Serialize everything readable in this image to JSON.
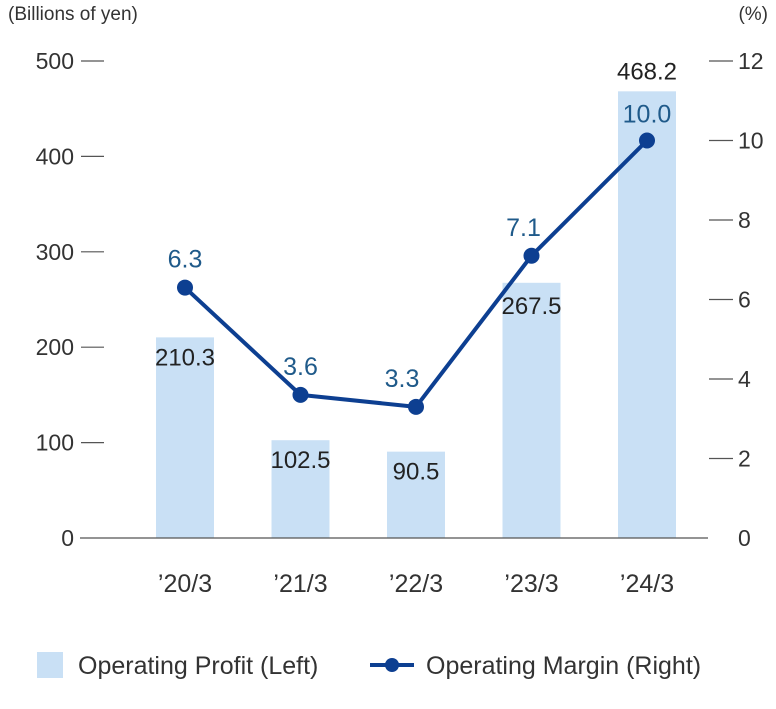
{
  "chart_data": {
    "type": "bar",
    "categories": [
      "’20/3",
      "’21/3",
      "’22/3",
      "’23/3",
      "’24/3"
    ],
    "series": [
      {
        "name": "Operating Profit (Left)",
        "type": "bar",
        "axis": "left",
        "values": [
          210.3,
          102.5,
          90.5,
          267.5,
          468.2
        ],
        "labels": [
          "210.3",
          "102.5",
          "90.5",
          "267.5",
          "468.2"
        ],
        "color": "#c9e0f5"
      },
      {
        "name": "Operating Margin (Right)",
        "type": "line",
        "axis": "right",
        "values": [
          6.3,
          3.6,
          3.3,
          7.1,
          10.0
        ],
        "labels": [
          "6.3",
          "3.6",
          "3.3",
          "7.1",
          "10.0"
        ],
        "color": "#0d3f91"
      }
    ],
    "left_axis": {
      "unit": "(Billions of yen)",
      "ylim": [
        0,
        500
      ],
      "ticks": [
        "0",
        "100",
        "200",
        "300",
        "400",
        "500"
      ]
    },
    "right_axis": {
      "unit": "(%)",
      "ylim": [
        0,
        12
      ],
      "ticks": [
        "0",
        "2",
        "4",
        "6",
        "8",
        "10",
        "12"
      ]
    },
    "legend": {
      "position": "bottom",
      "items": [
        "Operating Profit (Left)",
        "Operating Margin (Right)"
      ]
    },
    "grid": false,
    "label_color": "#1f5a8a"
  }
}
